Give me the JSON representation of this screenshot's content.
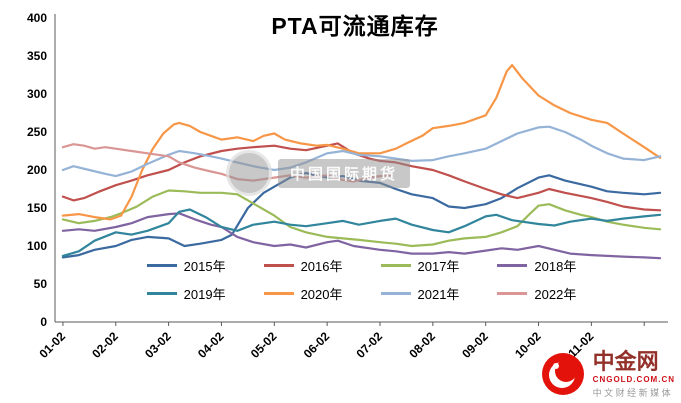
{
  "title": "PTA可流通库存",
  "watermark": {
    "text": "中国国际期货"
  },
  "logo": {
    "name": "中金网",
    "domain": "CNGOLD.COM.CN",
    "tagline": "中文财经新媒体"
  },
  "chart_data": {
    "type": "line",
    "title": "PTA可流通库存",
    "xlabel": "",
    "ylabel": "",
    "x_unit": "month-day, 1 = 01-02",
    "xlim": [
      0.85,
      12.45
    ],
    "ylim": [
      0,
      400
    ],
    "grid": false,
    "legend_position": "bottom-inside",
    "yticks": [
      0,
      50,
      100,
      150,
      200,
      250,
      300,
      350,
      400
    ],
    "xtick_positions": [
      1,
      2,
      3,
      4,
      5,
      6,
      7,
      8,
      9,
      10,
      11,
      12
    ],
    "xtick_labels": [
      "01-02",
      "02-02",
      "03-02",
      "04-02",
      "05-02",
      "06-02",
      "07-02",
      "08-02",
      "09-02",
      "10-02",
      "11-02",
      ""
    ],
    "series": [
      {
        "name": "2015年",
        "color": "#3B6AA0",
        "points": [
          [
            1,
            85
          ],
          [
            1.3,
            88
          ],
          [
            1.6,
            95
          ],
          [
            2,
            100
          ],
          [
            2.3,
            108
          ],
          [
            2.6,
            112
          ],
          [
            3,
            110
          ],
          [
            3.3,
            100
          ],
          [
            3.6,
            103
          ],
          [
            4,
            108
          ],
          [
            4.2,
            115
          ],
          [
            4.5,
            150
          ],
          [
            4.8,
            170
          ],
          [
            5,
            178
          ],
          [
            5.3,
            190
          ],
          [
            5.6,
            196
          ],
          [
            6,
            190
          ],
          [
            6.3,
            192
          ],
          [
            6.6,
            186
          ],
          [
            7,
            183
          ],
          [
            7.3,
            175
          ],
          [
            7.6,
            168
          ],
          [
            8,
            163
          ],
          [
            8.3,
            152
          ],
          [
            8.6,
            150
          ],
          [
            9,
            155
          ],
          [
            9.3,
            163
          ],
          [
            9.6,
            176
          ],
          [
            10,
            190
          ],
          [
            10.2,
            193
          ],
          [
            10.5,
            186
          ],
          [
            11,
            178
          ],
          [
            11.3,
            172
          ],
          [
            11.6,
            170
          ],
          [
            12,
            168
          ],
          [
            12.3,
            170
          ]
        ]
      },
      {
        "name": "2016年",
        "color": "#C0504D",
        "points": [
          [
            1,
            165
          ],
          [
            1.2,
            160
          ],
          [
            1.4,
            163
          ],
          [
            1.7,
            172
          ],
          [
            2,
            180
          ],
          [
            2.3,
            186
          ],
          [
            2.6,
            193
          ],
          [
            3,
            200
          ],
          [
            3.3,
            210
          ],
          [
            3.6,
            218
          ],
          [
            4,
            225
          ],
          [
            4.3,
            228
          ],
          [
            4.6,
            230
          ],
          [
            5,
            232
          ],
          [
            5.3,
            228
          ],
          [
            5.6,
            226
          ],
          [
            6,
            232
          ],
          [
            6.2,
            235
          ],
          [
            6.5,
            222
          ],
          [
            6.8,
            215
          ],
          [
            7,
            212
          ],
          [
            7.3,
            210
          ],
          [
            7.6,
            205
          ],
          [
            8,
            200
          ],
          [
            8.3,
            193
          ],
          [
            8.6,
            185
          ],
          [
            9,
            175
          ],
          [
            9.3,
            168
          ],
          [
            9.6,
            163
          ],
          [
            10,
            170
          ],
          [
            10.2,
            175
          ],
          [
            10.5,
            170
          ],
          [
            11,
            163
          ],
          [
            11.3,
            158
          ],
          [
            11.6,
            152
          ],
          [
            12,
            148
          ],
          [
            12.3,
            147
          ]
        ]
      },
      {
        "name": "2017年",
        "color": "#9BBB59",
        "points": [
          [
            1,
            135
          ],
          [
            1.3,
            130
          ],
          [
            1.6,
            133
          ],
          [
            1.9,
            138
          ],
          [
            2.1,
            143
          ],
          [
            2.4,
            152
          ],
          [
            2.7,
            165
          ],
          [
            3,
            173
          ],
          [
            3.3,
            172
          ],
          [
            3.6,
            170
          ],
          [
            4,
            170
          ],
          [
            4.3,
            168
          ],
          [
            4.6,
            156
          ],
          [
            5,
            140
          ],
          [
            5.3,
            125
          ],
          [
            5.6,
            118
          ],
          [
            6,
            112
          ],
          [
            6.3,
            110
          ],
          [
            6.6,
            108
          ],
          [
            7,
            105
          ],
          [
            7.3,
            103
          ],
          [
            7.6,
            100
          ],
          [
            8,
            102
          ],
          [
            8.3,
            107
          ],
          [
            8.6,
            110
          ],
          [
            9,
            112
          ],
          [
            9.3,
            118
          ],
          [
            9.6,
            126
          ],
          [
            9.8,
            140
          ],
          [
            10,
            153
          ],
          [
            10.2,
            155
          ],
          [
            10.5,
            147
          ],
          [
            10.8,
            141
          ],
          [
            11,
            138
          ],
          [
            11.3,
            132
          ],
          [
            11.6,
            128
          ],
          [
            12,
            124
          ],
          [
            12.3,
            122
          ]
        ]
      },
      {
        "name": "2018年",
        "color": "#8064A2",
        "points": [
          [
            1,
            120
          ],
          [
            1.3,
            122
          ],
          [
            1.6,
            120
          ],
          [
            2,
            125
          ],
          [
            2.3,
            130
          ],
          [
            2.6,
            138
          ],
          [
            3,
            142
          ],
          [
            3.2,
            143
          ],
          [
            3.5,
            135
          ],
          [
            3.8,
            128
          ],
          [
            4,
            125
          ],
          [
            4.3,
            112
          ],
          [
            4.6,
            105
          ],
          [
            5,
            100
          ],
          [
            5.3,
            102
          ],
          [
            5.6,
            98
          ],
          [
            6,
            105
          ],
          [
            6.2,
            107
          ],
          [
            6.5,
            100
          ],
          [
            7,
            95
          ],
          [
            7.3,
            93
          ],
          [
            7.6,
            90
          ],
          [
            8,
            90
          ],
          [
            8.3,
            92
          ],
          [
            8.6,
            90
          ],
          [
            9,
            94
          ],
          [
            9.3,
            97
          ],
          [
            9.6,
            95
          ],
          [
            10,
            100
          ],
          [
            10.3,
            95
          ],
          [
            10.6,
            90
          ],
          [
            11,
            88
          ],
          [
            11.3,
            87
          ],
          [
            11.6,
            86
          ],
          [
            12,
            85
          ],
          [
            12.3,
            84
          ]
        ]
      },
      {
        "name": "2019年",
        "color": "#31859C",
        "points": [
          [
            1,
            87
          ],
          [
            1.3,
            93
          ],
          [
            1.6,
            107
          ],
          [
            2,
            118
          ],
          [
            2.3,
            115
          ],
          [
            2.6,
            120
          ],
          [
            3,
            130
          ],
          [
            3.2,
            145
          ],
          [
            3.4,
            148
          ],
          [
            3.7,
            138
          ],
          [
            4,
            125
          ],
          [
            4.3,
            120
          ],
          [
            4.6,
            128
          ],
          [
            5,
            132
          ],
          [
            5.3,
            128
          ],
          [
            5.6,
            126
          ],
          [
            6,
            130
          ],
          [
            6.3,
            133
          ],
          [
            6.6,
            128
          ],
          [
            7,
            133
          ],
          [
            7.3,
            136
          ],
          [
            7.6,
            128
          ],
          [
            8,
            121
          ],
          [
            8.3,
            118
          ],
          [
            8.6,
            126
          ],
          [
            9,
            139
          ],
          [
            9.2,
            141
          ],
          [
            9.5,
            134
          ],
          [
            10,
            129
          ],
          [
            10.3,
            127
          ],
          [
            10.6,
            132
          ],
          [
            11,
            136
          ],
          [
            11.3,
            133
          ],
          [
            11.6,
            136
          ],
          [
            12,
            139
          ],
          [
            12.3,
            141
          ]
        ]
      },
      {
        "name": "2020年",
        "color": "#F79646",
        "points": [
          [
            1,
            140
          ],
          [
            1.3,
            142
          ],
          [
            1.6,
            138
          ],
          [
            1.9,
            135
          ],
          [
            2.1,
            140
          ],
          [
            2.3,
            165
          ],
          [
            2.5,
            200
          ],
          [
            2.7,
            228
          ],
          [
            2.9,
            248
          ],
          [
            3.1,
            260
          ],
          [
            3.2,
            262
          ],
          [
            3.4,
            258
          ],
          [
            3.6,
            250
          ],
          [
            3.8,
            245
          ],
          [
            4,
            240
          ],
          [
            4.3,
            243
          ],
          [
            4.6,
            238
          ],
          [
            4.8,
            245
          ],
          [
            5,
            248
          ],
          [
            5.2,
            240
          ],
          [
            5.5,
            235
          ],
          [
            5.8,
            232
          ],
          [
            6,
            233
          ],
          [
            6.3,
            228
          ],
          [
            6.6,
            222
          ],
          [
            7,
            222
          ],
          [
            7.3,
            228
          ],
          [
            7.5,
            235
          ],
          [
            7.8,
            245
          ],
          [
            8,
            255
          ],
          [
            8.3,
            258
          ],
          [
            8.6,
            262
          ],
          [
            9,
            272
          ],
          [
            9.2,
            295
          ],
          [
            9.4,
            330
          ],
          [
            9.5,
            338
          ],
          [
            9.7,
            320
          ],
          [
            10,
            298
          ],
          [
            10.3,
            285
          ],
          [
            10.6,
            275
          ],
          [
            11,
            266
          ],
          [
            11.3,
            262
          ],
          [
            11.6,
            248
          ],
          [
            12,
            230
          ],
          [
            12.3,
            216
          ]
        ]
      },
      {
        "name": "2021年",
        "color": "#95B3D7",
        "points": [
          [
            1,
            200
          ],
          [
            1.2,
            205
          ],
          [
            1.5,
            200
          ],
          [
            1.8,
            195
          ],
          [
            2,
            192
          ],
          [
            2.3,
            198
          ],
          [
            2.6,
            208
          ],
          [
            3,
            220
          ],
          [
            3.2,
            225
          ],
          [
            3.5,
            222
          ],
          [
            3.8,
            218
          ],
          [
            4,
            215
          ],
          [
            4.3,
            210
          ],
          [
            4.6,
            205
          ],
          [
            5,
            200
          ],
          [
            5.3,
            203
          ],
          [
            5.6,
            210
          ],
          [
            6,
            222
          ],
          [
            6.3,
            225
          ],
          [
            6.6,
            220
          ],
          [
            7,
            218
          ],
          [
            7.3,
            215
          ],
          [
            7.6,
            212
          ],
          [
            8,
            213
          ],
          [
            8.3,
            218
          ],
          [
            8.6,
            222
          ],
          [
            9,
            228
          ],
          [
            9.3,
            238
          ],
          [
            9.6,
            248
          ],
          [
            10,
            256
          ],
          [
            10.2,
            257
          ],
          [
            10.5,
            250
          ],
          [
            10.8,
            240
          ],
          [
            11,
            232
          ],
          [
            11.3,
            222
          ],
          [
            11.6,
            215
          ],
          [
            12,
            213
          ],
          [
            12.3,
            218
          ]
        ]
      },
      {
        "name": "2022年",
        "color": "#D99694",
        "points": [
          [
            1,
            230
          ],
          [
            1.2,
            234
          ],
          [
            1.4,
            232
          ],
          [
            1.6,
            228
          ],
          [
            1.8,
            230
          ],
          [
            2,
            228
          ],
          [
            2.3,
            225
          ],
          [
            2.6,
            222
          ],
          [
            3,
            218
          ],
          [
            3.2,
            210
          ],
          [
            3.5,
            203
          ],
          [
            3.8,
            198
          ],
          [
            4,
            195
          ],
          [
            4.3,
            188
          ],
          [
            4.6,
            186
          ],
          [
            5,
            190
          ],
          [
            5.3,
            193
          ],
          [
            5.6,
            190
          ],
          [
            6,
            193
          ],
          [
            6.2,
            188
          ],
          [
            6.5,
            185
          ],
          [
            6.8,
            190
          ],
          [
            7,
            192
          ],
          [
            7.2,
            193
          ]
        ]
      }
    ]
  }
}
